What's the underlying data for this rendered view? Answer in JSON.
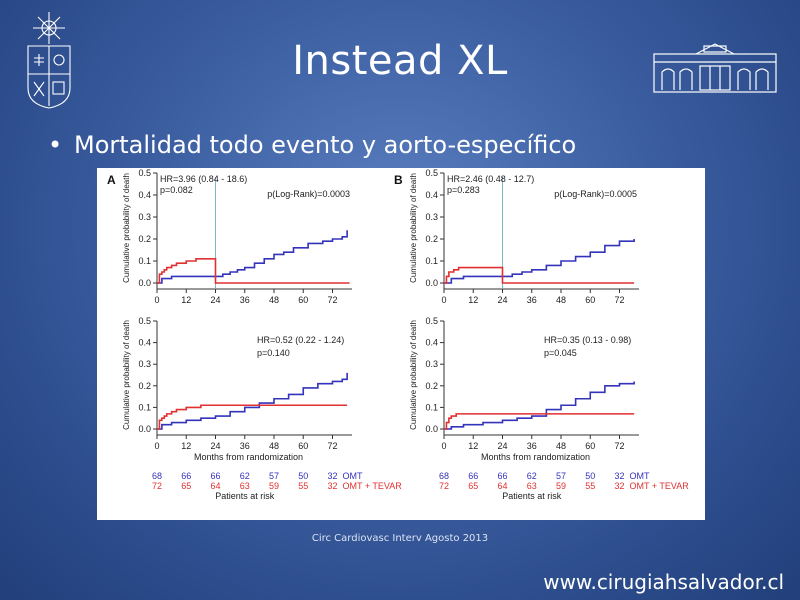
{
  "slide": {
    "title": "Instead XL",
    "bullet": "Mortalidad todo evento y aorto-específico",
    "citation": "Circ Cardiovasc Interv Agosto 2013",
    "url": "www.cirugiahsalvador.cl"
  },
  "logos": {
    "left": "university-crest-icon",
    "right": "hospital-building-icon"
  },
  "colors": {
    "omt": "#3333bb",
    "tevar": "#e03030",
    "divider": "#7ab8c8"
  },
  "risk_table": {
    "title": "Patients at risk",
    "rows": [
      {
        "label": "OMT",
        "color": "#3333bb",
        "values": [
          68,
          66,
          66,
          62,
          57,
          50,
          32
        ]
      },
      {
        "label": "OMT + TEVAR",
        "color": "#e03030",
        "values": [
          72,
          65,
          64,
          63,
          59,
          55,
          32
        ]
      }
    ]
  },
  "chart_data": [
    {
      "type": "line",
      "panel": "A",
      "position": "top-left",
      "xlabel": "",
      "ylabel": "Cumulative probability of death",
      "xticks": [
        0,
        12,
        24,
        36,
        48,
        60,
        72
      ],
      "yticks": [
        0.0,
        0.1,
        0.2,
        0.3,
        0.4,
        0.5
      ],
      "xlim": [
        0,
        80
      ],
      "ylim": [
        0,
        0.5
      ],
      "landmark_x": 24,
      "annotations": [
        "HR=3.96  (0.84 - 18.6)",
        "p=0.082",
        "p(Log-Rank)=0.0003"
      ],
      "series": [
        {
          "name": "OMT",
          "x": [
            0,
            2,
            6,
            24,
            27,
            30,
            33,
            36,
            40,
            44,
            48,
            52,
            56,
            62,
            68,
            72,
            76,
            78
          ],
          "y": [
            0.0,
            0.02,
            0.03,
            0.03,
            0.04,
            0.05,
            0.06,
            0.07,
            0.09,
            0.11,
            0.13,
            0.14,
            0.16,
            0.18,
            0.19,
            0.2,
            0.21,
            0.24
          ]
        },
        {
          "name": "OMT + TEVAR",
          "x": [
            0,
            1,
            2,
            3,
            4,
            6,
            8,
            12,
            16,
            24,
            79
          ],
          "y": [
            0.0,
            0.04,
            0.05,
            0.06,
            0.07,
            0.08,
            0.09,
            0.1,
            0.11,
            0.0,
            0.0
          ]
        }
      ]
    },
    {
      "type": "line",
      "panel": "B",
      "position": "top-right",
      "xlabel": "",
      "ylabel": "Cumulative probability of death",
      "xticks": [
        0,
        12,
        24,
        36,
        48,
        60,
        72
      ],
      "yticks": [
        0.0,
        0.1,
        0.2,
        0.3,
        0.4,
        0.5
      ],
      "xlim": [
        0,
        80
      ],
      "ylim": [
        0,
        0.5
      ],
      "landmark_x": 24,
      "annotations": [
        "HR=2.46  (0.48 - 12.7)",
        "p=0.283",
        "p(Log-Rank)=0.0005"
      ],
      "series": [
        {
          "name": "OMT",
          "x": [
            0,
            3,
            8,
            24,
            28,
            32,
            36,
            42,
            48,
            54,
            60,
            66,
            72,
            78
          ],
          "y": [
            0.0,
            0.02,
            0.03,
            0.03,
            0.04,
            0.05,
            0.06,
            0.08,
            0.1,
            0.12,
            0.14,
            0.17,
            0.19,
            0.2
          ]
        },
        {
          "name": "OMT + TEVAR",
          "x": [
            0,
            1,
            2,
            4,
            6,
            24,
            78
          ],
          "y": [
            0.0,
            0.03,
            0.05,
            0.06,
            0.07,
            0.0,
            0.0
          ]
        }
      ]
    },
    {
      "type": "line",
      "panel": "",
      "position": "bottom-left",
      "xlabel": "Months from randomization",
      "ylabel": "Cumulative probability of death",
      "xticks": [
        0,
        12,
        24,
        36,
        48,
        60,
        72
      ],
      "yticks": [
        0.0,
        0.1,
        0.2,
        0.3,
        0.4,
        0.5
      ],
      "xlim": [
        0,
        80
      ],
      "ylim": [
        0,
        0.5
      ],
      "annotations": [
        "HR=0.52  (0.22 - 1.24)",
        "p=0.140"
      ],
      "series": [
        {
          "name": "OMT",
          "x": [
            0,
            2,
            6,
            12,
            18,
            24,
            30,
            36,
            42,
            48,
            54,
            60,
            66,
            72,
            76,
            78
          ],
          "y": [
            0.0,
            0.02,
            0.03,
            0.04,
            0.05,
            0.06,
            0.08,
            0.1,
            0.12,
            0.14,
            0.16,
            0.19,
            0.21,
            0.22,
            0.23,
            0.26
          ]
        },
        {
          "name": "OMT + TEVAR",
          "x": [
            0,
            1,
            2,
            3,
            4,
            6,
            8,
            12,
            18,
            24,
            36,
            48,
            78
          ],
          "y": [
            0.0,
            0.04,
            0.05,
            0.06,
            0.07,
            0.08,
            0.09,
            0.1,
            0.11,
            0.11,
            0.11,
            0.11,
            0.11
          ]
        }
      ]
    },
    {
      "type": "line",
      "panel": "",
      "position": "bottom-right",
      "xlabel": "Months from randomization",
      "ylabel": "Cumulative probability of death",
      "xticks": [
        0,
        12,
        24,
        36,
        48,
        60,
        72
      ],
      "yticks": [
        0.0,
        0.1,
        0.2,
        0.3,
        0.4,
        0.5
      ],
      "xlim": [
        0,
        80
      ],
      "ylim": [
        0,
        0.5
      ],
      "annotations": [
        "HR=0.35  (0.13 - 0.98)",
        "p=0.045"
      ],
      "series": [
        {
          "name": "OMT",
          "x": [
            0,
            3,
            8,
            16,
            24,
            30,
            36,
            42,
            48,
            54,
            60,
            66,
            72,
            78
          ],
          "y": [
            0.0,
            0.01,
            0.02,
            0.03,
            0.04,
            0.05,
            0.06,
            0.09,
            0.11,
            0.14,
            0.17,
            0.2,
            0.21,
            0.22
          ]
        },
        {
          "name": "OMT + TEVAR",
          "x": [
            0,
            1,
            2,
            3,
            5,
            78
          ],
          "y": [
            0.0,
            0.03,
            0.05,
            0.06,
            0.07,
            0.07
          ]
        }
      ]
    }
  ]
}
